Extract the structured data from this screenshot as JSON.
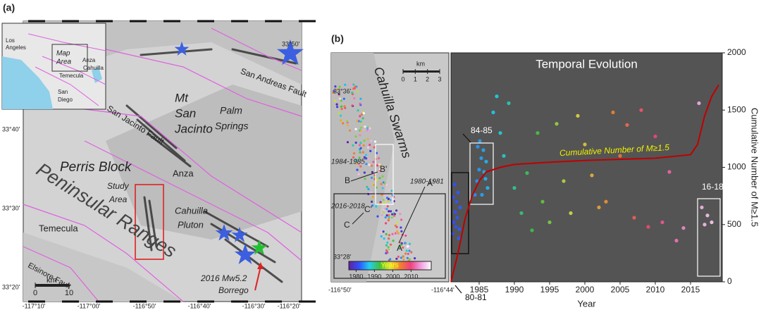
{
  "panel_a": {
    "label": "(a)",
    "labels": [
      "Los",
      "Angeles",
      "Map",
      "Area",
      "Anza",
      "Cahuilla",
      "Temecula",
      "San",
      "Diego",
      "Mt",
      "San",
      "Jacinto",
      "Palm",
      "Springs",
      "San Andreas Fault",
      "San Jacinto Fault",
      "Perris Block",
      "Peninsular Ranges",
      "Study",
      "Area",
      "Anza",
      "Cahuilla",
      "Pluton",
      "Temecula",
      "Elsinore Fault",
      "2016 Mw5.2",
      "Borrego",
      "km"
    ],
    "xcoords": [
      "-117°10'",
      "-117°00'",
      "-116°50'",
      "-116°40'",
      "-116°30'",
      "-116°20'"
    ],
    "ycoords": [
      "33°20'",
      "33°30'",
      "33°40'",
      "33°50'"
    ],
    "scale_ticks": [
      0,
      10
    ]
  },
  "panel_b_map": {
    "label": "(b)",
    "labels": [
      "Cahuilla Swarms",
      "km",
      "1984-1985",
      "1980-1981",
      "2016-2018",
      "B",
      "B'",
      "A'",
      "C",
      "C'",
      "A",
      "Years"
    ],
    "xcoords": [
      "-116°50'",
      "-116°44'"
    ],
    "ycoords": [
      "33°36'",
      "33°28'"
    ],
    "scale_ticks": [
      0,
      1,
      2,
      3
    ],
    "colorbar": {
      "lim": [
        1976,
        2021
      ],
      "ticks": [
        1980,
        1990,
        2000,
        2010
      ],
      "colors": [
        "#6020a0",
        "#3050ff",
        "#20d0f0",
        "#40c040",
        "#e0e040",
        "#f08030",
        "#f04080",
        "#f0a0e0",
        "#ffffff"
      ]
    }
  },
  "chart_data": {
    "type": "scatter-line",
    "title": "Temporal Evolution",
    "xlabel": "Year",
    "ylabel": "Cumulative Number of M≥1.5",
    "xlim": [
      1981,
      2019.5
    ],
    "xticks": [
      1985,
      1990,
      1995,
      2000,
      2005,
      2010,
      2015
    ],
    "ylim": [
      0,
      2000
    ],
    "yticks": [
      0,
      500,
      1000,
      1500,
      2000
    ],
    "y_axis_side": "right",
    "background": "#545454",
    "annotations": [
      "84-85",
      "80-81",
      "16-18",
      "Cumulative Number of M≥1.5"
    ],
    "events": {
      "x": [
        1981.2,
        1981.4,
        1981.6,
        1981.8,
        1982.0,
        1982.2,
        1981.5,
        1981.9,
        1982.3,
        1981.3,
        1982.1,
        1981.7,
        1984.4,
        1984.7,
        1985.0,
        1985.3,
        1985.6,
        1985.9,
        1986.2,
        1984.8,
        1985.4,
        1986.0,
        1985.1,
        1985.7,
        1987.0,
        1987.5,
        1988.0,
        1988.5,
        1989.2,
        1990.0,
        1991.0,
        1991.8,
        1992.5,
        1993.3,
        1994.0,
        1995.0,
        1996.0,
        1997.0,
        1998.0,
        1999.0,
        2000.0,
        2001.0,
        2002.0,
        2003.0,
        2004.0,
        2005.0,
        2006.0,
        2007.0,
        2008.0,
        2009.0,
        2010.0,
        2011.0,
        2012.0,
        2013.0,
        2014.0,
        2016.2,
        2016.6,
        2017.0,
        2017.4,
        2018.0
      ],
      "y": [
        420,
        520,
        610,
        700,
        780,
        460,
        850,
        560,
        650,
        740,
        380,
        480,
        760,
        880,
        980,
        1080,
        1150,
        900,
        820,
        1180,
        760,
        1050,
        1230,
        960,
        1480,
        1620,
        1300,
        1100,
        1560,
        820,
        600,
        950,
        450,
        1300,
        700,
        520,
        1380,
        880,
        600,
        1450,
        1200,
        930,
        650,
        700,
        1480,
        1100,
        1370,
        560,
        1500,
        480,
        1270,
        520,
        960,
        360,
        470,
        1560,
        650,
        500,
        580,
        520
      ]
    },
    "cumulative": {
      "color": "#c00000",
      "x": [
        1981,
        1982,
        1983,
        1984,
        1985,
        1986,
        1988,
        1990,
        1995,
        2000,
        2005,
        2010,
        2015,
        2016,
        2017,
        2018,
        2019
      ],
      "y": [
        0,
        250,
        550,
        750,
        880,
        960,
        1000,
        1025,
        1045,
        1060,
        1070,
        1080,
        1110,
        1200,
        1450,
        1620,
        1720
      ]
    }
  }
}
